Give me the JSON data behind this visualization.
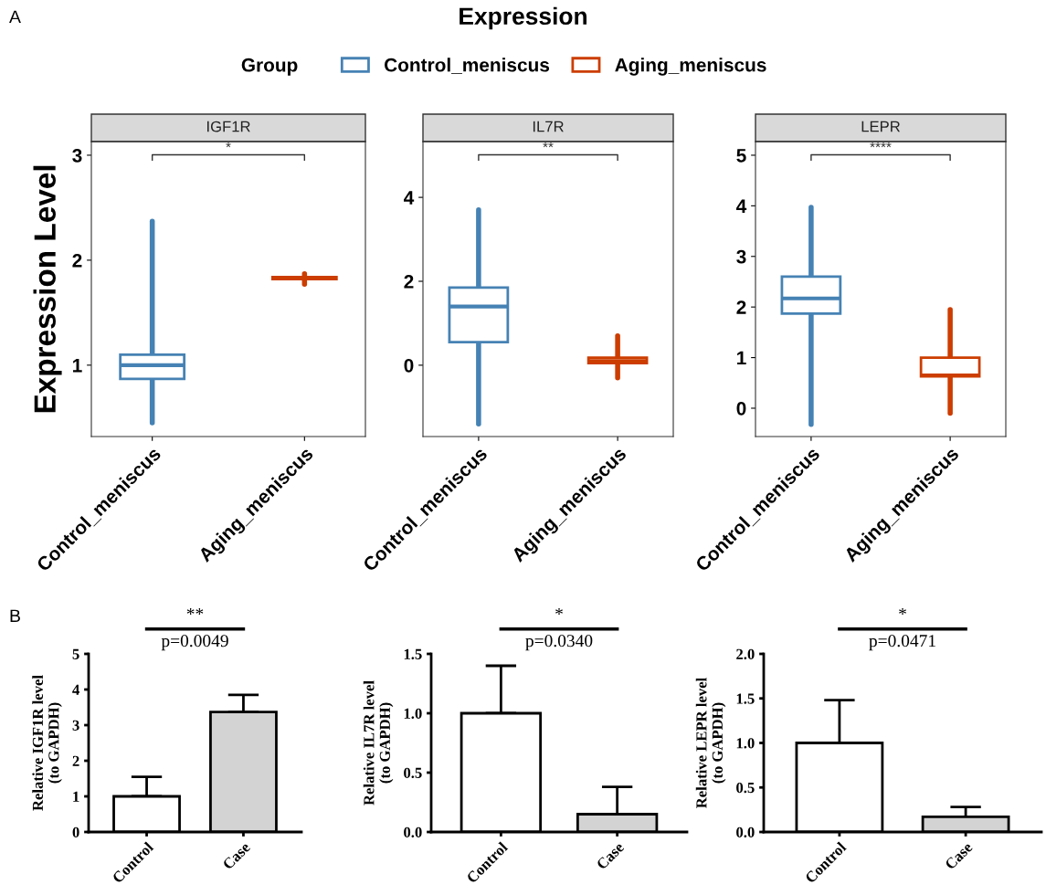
{
  "chart_data": [
    {
      "type": "box",
      "title": "IGF1R",
      "ylabel": "Expression Level",
      "legend_title": "Group",
      "legend": "top",
      "categories": [
        "Control_meniscus",
        "Aging_meniscus"
      ],
      "ylim": [
        0.32,
        3.13
      ],
      "yticks": [
        1,
        2,
        3
      ],
      "grid": false,
      "annotations": [
        "A",
        "Expression",
        "*"
      ],
      "series": [
        {
          "name": "Control_meniscus",
          "color": "#4682b4",
          "boxes": [
            {
              "low": 0.45,
              "q1": 0.87,
              "median": 1.0,
              "q3": 1.1,
              "high": 2.37
            },
            null
          ]
        },
        {
          "name": "Aging_meniscus",
          "color": "#cc3d00",
          "boxes": [
            null,
            {
              "low": 1.77,
              "q1": 1.82,
              "median": 1.83,
              "q3": 1.84,
              "high": 1.87
            }
          ]
        }
      ]
    },
    {
      "type": "box",
      "title": "IL7R",
      "categories": [
        "Control_meniscus",
        "Aging_meniscus"
      ],
      "ylim": [
        -1.7,
        5.33
      ],
      "yticks": [
        0,
        2,
        4
      ],
      "grid": false,
      "annotations": [
        "**"
      ],
      "series": [
        {
          "color": "#4682b4",
          "boxes": [
            {
              "low": -1.4,
              "q1": 0.55,
              "median": 1.4,
              "q3": 1.85,
              "high": 3.7
            },
            null
          ]
        },
        {
          "color": "#cc3d00",
          "boxes": [
            null,
            {
              "low": -0.3,
              "q1": 0.05,
              "median": 0.1,
              "q3": 0.18,
              "high": 0.7
            }
          ]
        }
      ]
    },
    {
      "type": "box",
      "title": "LEPR",
      "categories": [
        "Control_meniscus",
        "Aging_meniscus"
      ],
      "ylim": [
        -0.56,
        5.27
      ],
      "yticks": [
        0,
        1,
        2,
        3,
        4,
        5
      ],
      "grid": false,
      "annotations": [
        "****"
      ],
      "series": [
        {
          "color": "#4682b4",
          "boxes": [
            {
              "low": -0.32,
              "q1": 1.87,
              "median": 2.17,
              "q3": 2.6,
              "high": 3.97
            },
            null
          ]
        },
        {
          "color": "#cc3d00",
          "boxes": [
            null,
            {
              "low": -0.1,
              "q1": 0.63,
              "median": 0.65,
              "q3": 1.0,
              "high": 1.95
            }
          ]
        }
      ]
    },
    {
      "type": "bar",
      "ylabel": "Relative IGF1R level\n(to GAPDH)",
      "categories": [
        "Control",
        "Case"
      ],
      "values": [
        1.0,
        3.37
      ],
      "errors": [
        [
          1.0,
          1.55
        ],
        [
          3.37,
          3.85
        ]
      ],
      "colors": [
        "#ffffff",
        "#d3d3d3"
      ],
      "ylim": [
        0,
        5
      ],
      "yticks": [
        0,
        1,
        2,
        3,
        4,
        5
      ],
      "grid": false,
      "annotations": [
        "B",
        "**",
        "p=0.0049"
      ]
    },
    {
      "type": "bar",
      "ylabel": "Relative IL7R level\n(to GAPDH)",
      "categories": [
        "Control",
        "Case"
      ],
      "values": [
        1.0,
        0.15
      ],
      "errors": [
        [
          1.0,
          1.4
        ],
        [
          0.15,
          0.38
        ]
      ],
      "colors": [
        "#ffffff",
        "#d3d3d3"
      ],
      "ylim": [
        0,
        1.5
      ],
      "yticks": [
        {
          "value": 0,
          "label": "0.0"
        },
        {
          "value": 0.5,
          "label": "0.5"
        },
        {
          "value": 1.0,
          "label": "1.0"
        },
        {
          "value": 1.5,
          "label": "1.5"
        }
      ],
      "grid": false,
      "annotations": [
        "*",
        "p=0.0340"
      ]
    },
    {
      "type": "bar",
      "ylabel": "Relative LEPR level\n(to GAPDH)",
      "categories": [
        "Control",
        "Case"
      ],
      "values": [
        1.0,
        0.17
      ],
      "errors": [
        [
          1.0,
          1.48
        ],
        [
          0.17,
          0.28
        ]
      ],
      "colors": [
        "#ffffff",
        "#d3d3d3"
      ],
      "ylim": [
        0,
        2.0
      ],
      "yticks": [
        {
          "value": 0,
          "label": "0.0"
        },
        {
          "value": 0.5,
          "label": "0.5"
        },
        {
          "value": 1.0,
          "label": "1.0"
        },
        {
          "value": 1.5,
          "label": "1.5"
        },
        {
          "value": 2.0,
          "label": "2.0"
        }
      ],
      "grid": false,
      "annotations": [
        "*",
        "p=0.0471"
      ]
    }
  ]
}
